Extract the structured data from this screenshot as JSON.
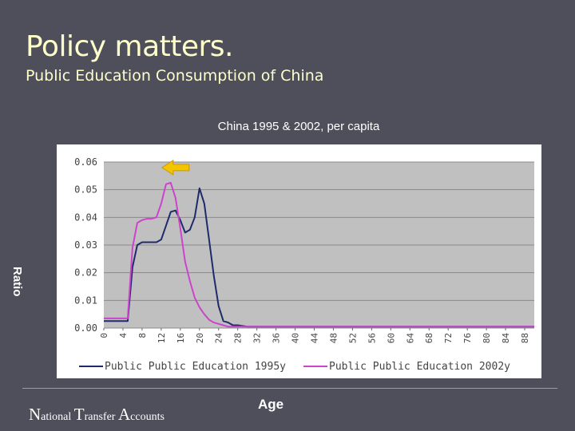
{
  "slide": {
    "title": "Policy matters.",
    "subtitle": "Public Education Consumption of China",
    "footer": [
      "N",
      "ational ",
      "T",
      "ransfer ",
      "A",
      "ccounts"
    ]
  },
  "chart_data": {
    "type": "line",
    "title": "China 1995 & 2002, per capita",
    "xlabel": "Age",
    "ylabel": "Ratio",
    "xlim": [
      0,
      90
    ],
    "ylim": [
      0,
      0.06
    ],
    "x_ticks": [
      "0",
      "4",
      "8",
      "12",
      "16",
      "20",
      "24",
      "28",
      "32",
      "36",
      "40",
      "44",
      "48",
      "52",
      "56",
      "60",
      "64",
      "68",
      "72",
      "76",
      "80",
      "84",
      "88"
    ],
    "y_ticks": [
      "0.00",
      "0.01",
      "0.02",
      "0.03",
      "0.04",
      "0.05",
      "0.06"
    ],
    "grid": true,
    "legend_position": "bottom",
    "series": [
      {
        "name": "Public Public Education 1995y",
        "color": "#1f2a6b",
        "x": [
          0,
          4,
          5,
          6,
          7,
          8,
          9,
          10,
          11,
          12,
          13,
          14,
          15,
          16,
          17,
          18,
          19,
          20,
          21,
          22,
          23,
          24,
          25,
          26,
          27,
          28,
          30,
          40,
          50,
          60,
          70,
          80,
          90
        ],
        "y": [
          0.0025,
          0.0025,
          0.0025,
          0.022,
          0.03,
          0.031,
          0.031,
          0.031,
          0.031,
          0.032,
          0.037,
          0.042,
          0.0425,
          0.039,
          0.0345,
          0.0355,
          0.04,
          0.0505,
          0.045,
          0.032,
          0.019,
          0.008,
          0.0025,
          0.002,
          0.001,
          0.001,
          0.0005,
          0.0005,
          0.0005,
          0.0005,
          0.0005,
          0.0005,
          0.0005
        ]
      },
      {
        "name": "Public Public Education 2002y",
        "color": "#cc44cc",
        "x": [
          0,
          4,
          5,
          6,
          7,
          8,
          9,
          10,
          11,
          12,
          13,
          14,
          15,
          16,
          17,
          18,
          19,
          20,
          21,
          22,
          23,
          24,
          25,
          26,
          27,
          28,
          30,
          40,
          50,
          60,
          70,
          80,
          90
        ],
        "y": [
          0.0035,
          0.0035,
          0.0035,
          0.029,
          0.038,
          0.039,
          0.0395,
          0.0395,
          0.04,
          0.045,
          0.052,
          0.0525,
          0.047,
          0.036,
          0.024,
          0.017,
          0.011,
          0.0075,
          0.005,
          0.003,
          0.002,
          0.0015,
          0.001,
          0.0005,
          0.0005,
          0.0005,
          0.0005,
          0.0005,
          0.0005,
          0.0005,
          0.0005,
          0.0005,
          0.0005
        ]
      }
    ],
    "annotations": [
      {
        "type": "arrow",
        "direction": "left",
        "color": "#f5c400",
        "x": 14.5,
        "y": 0.058
      }
    ]
  }
}
